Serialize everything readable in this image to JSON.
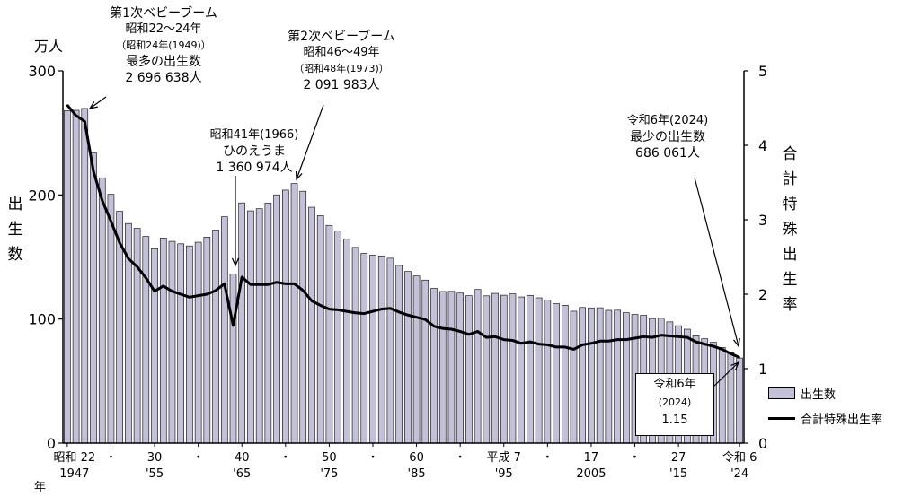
{
  "chart_data": {
    "type": "bar",
    "left_axis_unit": "万人",
    "left_axis_label": "出生数",
    "right_axis_label": "合計特殊出生率",
    "y_left": {
      "range": [
        0,
        300
      ],
      "ticks": [
        "0",
        "100",
        "200",
        "300"
      ]
    },
    "y_right": {
      "range": [
        0,
        5
      ],
      "ticks": [
        "0",
        "1",
        "2",
        "3",
        "4",
        "5"
      ]
    },
    "x_tick_labels_top": [
      "昭和 22",
      "・",
      "30",
      "・",
      "40",
      "・",
      "50",
      "・",
      "60",
      "・",
      "平成 7",
      "・",
      "17",
      "・",
      "27",
      "令和 6"
    ],
    "x_tick_labels_bottom": [
      "1947",
      "",
      "'55",
      "",
      "'65",
      "",
      "'75",
      "",
      "'85",
      "",
      "'95",
      "",
      "2005",
      "",
      "'15",
      "'24"
    ],
    "x_axis_suffix": "年",
    "years": [
      1947,
      1948,
      1949,
      1950,
      1951,
      1952,
      1953,
      1954,
      1955,
      1956,
      1957,
      1958,
      1959,
      1960,
      1961,
      1962,
      1963,
      1964,
      1965,
      1966,
      1967,
      1968,
      1969,
      1970,
      1971,
      1972,
      1973,
      1974,
      1975,
      1976,
      1977,
      1978,
      1979,
      1980,
      1981,
      1982,
      1983,
      1984,
      1985,
      1986,
      1987,
      1988,
      1989,
      1990,
      1991,
      1992,
      1993,
      1994,
      1995,
      1996,
      1997,
      1998,
      1999,
      2000,
      2001,
      2002,
      2003,
      2004,
      2005,
      2006,
      2007,
      2008,
      2009,
      2010,
      2011,
      2012,
      2013,
      2014,
      2015,
      2016,
      2017,
      2018,
      2019,
      2020,
      2021,
      2022,
      2023,
      2024
    ],
    "series": [
      {
        "name": "出生数",
        "type": "bar",
        "axis": "left",
        "color": "#c3c0d9",
        "values": [
          267.9,
          268.2,
          269.7,
          233.8,
          213.8,
          200.5,
          186.8,
          177.0,
          173.1,
          166.5,
          156.7,
          165.3,
          162.6,
          160.6,
          158.9,
          161.9,
          166.0,
          171.7,
          182.4,
          136.1,
          193.6,
          187.2,
          188.9,
          193.4,
          200.1,
          203.9,
          209.2,
          203.0,
          190.1,
          183.3,
          175.5,
          170.9,
          164.3,
          157.7,
          152.9,
          151.5,
          150.9,
          149.0,
          143.2,
          138.3,
          134.7,
          131.4,
          124.7,
          122.2,
          122.3,
          120.9,
          118.8,
          123.8,
          118.7,
          120.7,
          119.2,
          120.3,
          117.8,
          119.1,
          117.1,
          115.4,
          112.4,
          111.1,
          106.3,
          109.3,
          109.0,
          109.1,
          107.0,
          107.1,
          105.1,
          103.7,
          103.0,
          100.4,
          100.6,
          97.7,
          94.6,
          91.8,
          86.5,
          84.1,
          81.2,
          77.1,
          72.7,
          68.6
        ]
      },
      {
        "name": "合計特殊出生率",
        "type": "line",
        "axis": "right",
        "color": "#000000",
        "values": [
          4.54,
          4.4,
          4.32,
          3.65,
          3.26,
          2.98,
          2.69,
          2.48,
          2.37,
          2.22,
          2.04,
          2.11,
          2.04,
          2.0,
          1.96,
          1.98,
          2.0,
          2.05,
          2.14,
          1.58,
          2.23,
          2.13,
          2.13,
          2.13,
          2.16,
          2.14,
          2.14,
          2.05,
          1.91,
          1.85,
          1.8,
          1.79,
          1.77,
          1.75,
          1.74,
          1.77,
          1.8,
          1.81,
          1.76,
          1.72,
          1.69,
          1.66,
          1.57,
          1.54,
          1.53,
          1.5,
          1.46,
          1.5,
          1.42,
          1.43,
          1.39,
          1.38,
          1.34,
          1.36,
          1.33,
          1.32,
          1.29,
          1.29,
          1.26,
          1.32,
          1.34,
          1.37,
          1.37,
          1.39,
          1.39,
          1.41,
          1.43,
          1.42,
          1.45,
          1.44,
          1.43,
          1.42,
          1.36,
          1.33,
          1.3,
          1.26,
          1.2,
          1.15
        ]
      }
    ],
    "legend": {
      "position": "bottom-right",
      "items": [
        "出生数",
        "合計特殊出生率"
      ]
    },
    "grid": false
  },
  "annotations": {
    "first_boom": {
      "line1": "第1次ベビーブーム",
      "line2": "昭和22～24年",
      "line3": "（昭和24年(1949)）",
      "line4": "最多の出生数",
      "line5": "2 696 638人"
    },
    "hinoeuma": {
      "line1": "昭和41年(1966)",
      "line2": "ひのえうま",
      "line3": "1 360 974人"
    },
    "second_boom": {
      "line1": "第2次ベビーブーム",
      "line2": "昭和46～49年",
      "line3": "（昭和48年(1973)）",
      "line4": "2 091 983人"
    },
    "latest": {
      "line1": "令和6年(2024)",
      "line2": "最少の出生数",
      "line3": "686 061人"
    },
    "tfr_box": {
      "line1": "令和6年",
      "line2": "(2024)",
      "line3": "1.15"
    }
  }
}
